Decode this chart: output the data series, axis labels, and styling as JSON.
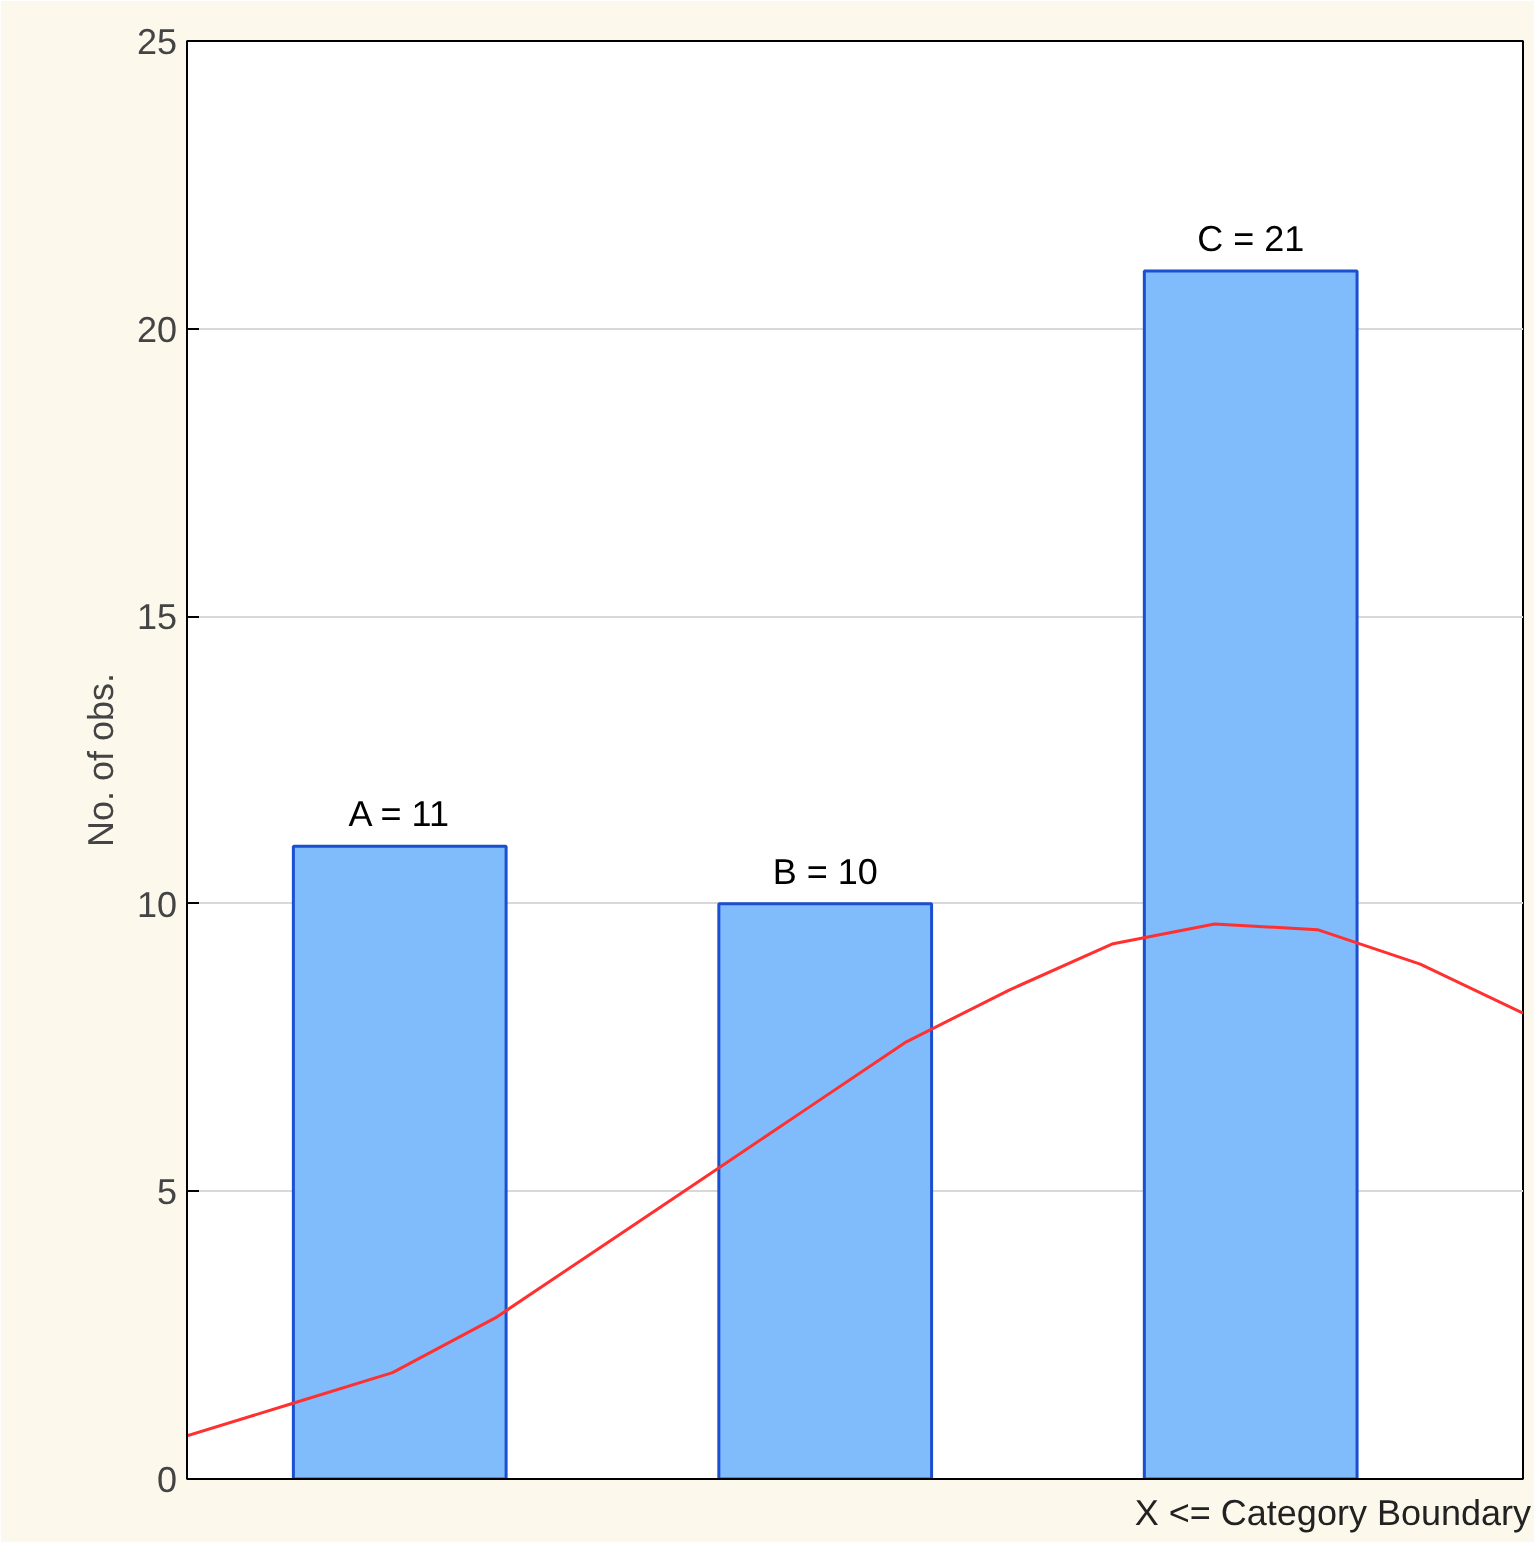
{
  "chart_data": [
    {
      "type": "bar",
      "xlabel": "X <= Category Boundary",
      "ylabel": "No. of obs.",
      "categories": [
        null,
        null,
        null
      ],
      "ylim": [
        0,
        25
      ],
      "yticks": [
        0,
        5,
        10,
        15,
        20,
        25
      ],
      "grid": "y",
      "series": [
        {
          "color": "#80bbfb",
          "values": [
            11,
            10,
            21
          ],
          "value_labels": [
            "A = 11",
            "B = 10",
            "C = 21"
          ]
        }
      ]
    },
    {
      "type": "line",
      "categories": [
        null,
        null,
        null,
        null,
        null,
        null,
        null,
        null,
        null,
        null,
        null,
        null,
        null,
        null
      ],
      "ylim": [
        0,
        25
      ],
      "yticks": [
        0,
        5,
        10,
        15,
        20,
        25
      ],
      "tick_labels": false,
      "series": [
        {
          "color": "#ff3030",
          "values": [
            0.75,
            1.3,
            1.85,
            2.8,
            4.0,
            5.2,
            6.4,
            7.6,
            8.5,
            9.3,
            9.65,
            9.55,
            8.95,
            8.1
          ]
        }
      ]
    }
  ]
}
